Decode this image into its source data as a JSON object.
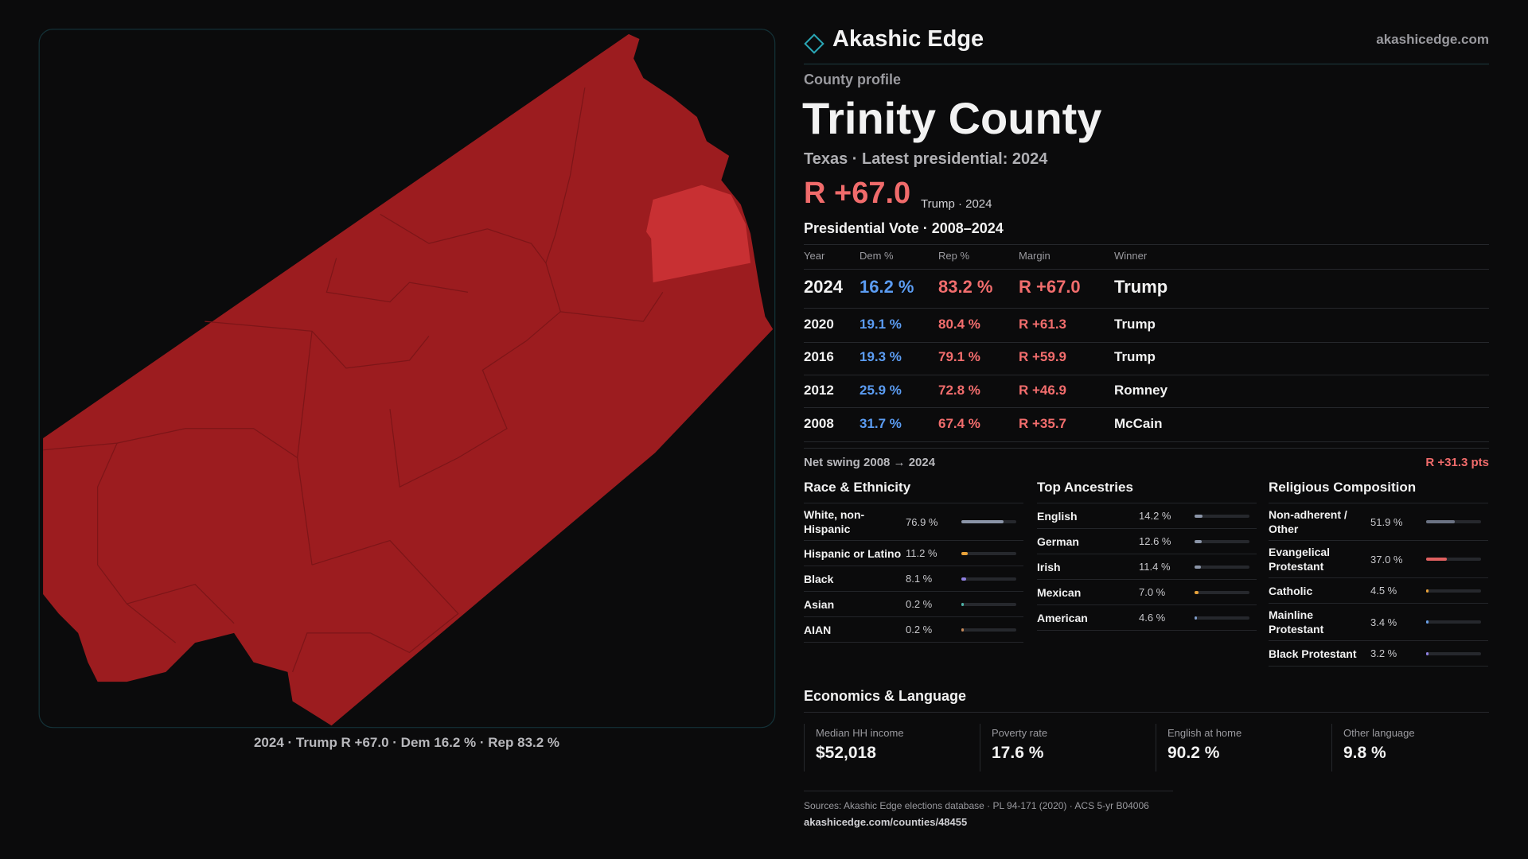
{
  "header": {
    "brand": "Akashic Edge",
    "site": "akashicedge.com"
  },
  "profile": {
    "kicker": "County profile",
    "name": "Trinity County",
    "subtitle": "Texas · Latest presidential: 2024",
    "margin": "R +67.0",
    "margin_note": "Trump · 2024"
  },
  "vote_table": {
    "title": "Presidential Vote · 2008–2024",
    "columns": [
      "Year",
      "Dem %",
      "Rep %",
      "Margin",
      "Winner"
    ],
    "rows": [
      [
        "2024",
        "16.2 %",
        "83.2 %",
        "R +67.0",
        "Trump"
      ],
      [
        "2020",
        "19.1 %",
        "80.4 %",
        "R +61.3",
        "Trump"
      ],
      [
        "2016",
        "19.3 %",
        "79.1 %",
        "R +59.9",
        "Trump"
      ],
      [
        "2012",
        "25.9 %",
        "72.8 %",
        "R +46.9",
        "Romney"
      ],
      [
        "2008",
        "31.7 %",
        "67.4 %",
        "R +35.7",
        "McCain"
      ]
    ]
  },
  "swing": {
    "label": "Net swing 2008 → 2024",
    "value": "R +31.3 pts"
  },
  "race": {
    "title": "Race & Ethnicity",
    "items": [
      {
        "label": "White, non-Hispanic",
        "value": 76.9,
        "value_label": "76.9 %",
        "color": "#8b95a8"
      },
      {
        "label": "Hispanic or Latino",
        "value": 11.2,
        "value_label": "11.2 %",
        "color": "#e8a23a"
      },
      {
        "label": "Black",
        "value": 8.1,
        "value_label": "8.1 %",
        "color": "#8f80e0"
      },
      {
        "label": "Asian",
        "value": 0.2,
        "value_label": "0.2 %",
        "color": "#4fb3a8"
      },
      {
        "label": "AIAN",
        "value": 0.2,
        "value_label": "0.2 %",
        "color": "#c78a5a"
      }
    ]
  },
  "ancestry": {
    "title": "Top Ancestries",
    "items": [
      {
        "label": "English",
        "value": 14.2,
        "value_label": "14.2 %",
        "color": "#8b95a8"
      },
      {
        "label": "German",
        "value": 12.6,
        "value_label": "12.6 %",
        "color": "#8b95a8"
      },
      {
        "label": "Irish",
        "value": 11.4,
        "value_label": "11.4 %",
        "color": "#8b95a8"
      },
      {
        "label": "Mexican",
        "value": 7.0,
        "value_label": "7.0 %",
        "color": "#e8a23a"
      },
      {
        "label": "American",
        "value": 4.6,
        "value_label": "4.6 %",
        "color": "#7f9cc8"
      }
    ]
  },
  "religion": {
    "title": "Religious Composition",
    "items": [
      {
        "label": "Non-adherent / Other",
        "value": 51.9,
        "value_label": "51.9 %",
        "color": "#6b7384"
      },
      {
        "label": "Evangelical Protestant",
        "value": 37.0,
        "value_label": "37.0 %",
        "color": "#e06060"
      },
      {
        "label": "Catholic",
        "value": 4.5,
        "value_label": "4.5 %",
        "color": "#e8a23a"
      },
      {
        "label": "Mainline Protestant",
        "value": 3.4,
        "value_label": "3.4 %",
        "color": "#6aa0e8"
      },
      {
        "label": "Black Protestant",
        "value": 3.2,
        "value_label": "3.2 %",
        "color": "#8f80e0"
      }
    ]
  },
  "economics": {
    "title": "Economics & Language",
    "cards": [
      {
        "label": "Median HH income",
        "value": "$52,018"
      },
      {
        "label": "Poverty rate",
        "value": "17.6 %"
      },
      {
        "label": "English at home",
        "value": "90.2 %"
      },
      {
        "label": "Other language",
        "value": "9.8 %"
      }
    ]
  },
  "sources": {
    "text": "Sources: Akashic Edge elections database · PL 94-171 (2020) · ACS 5-yr B04006",
    "url": "akashicedge.com/counties/48455"
  },
  "map": {
    "caption": "2024 · Trump R +67.0 · Dem 16.2 % · Rep 83.2 %"
  }
}
